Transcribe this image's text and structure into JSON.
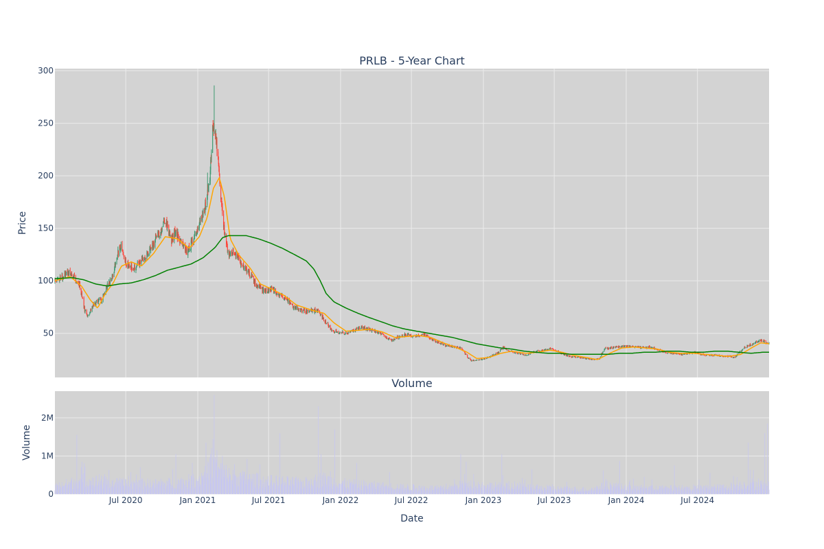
{
  "colors": {
    "background": "#ffffff",
    "plot_bg": "#d3d3d3",
    "grid": "#ebebeb",
    "text": "#2a3f5f",
    "candle_up": "#3d9970",
    "candle_down": "#ff4136",
    "ma_short": "#ffa500",
    "ma_long": "#008000",
    "volume_bar": "#c7c7f0"
  },
  "chart_data": [
    {
      "type": "candlestick",
      "title": "PRLB - 5-Year Chart",
      "xlabel": "",
      "ylabel": "Price",
      "x_range": [
        "2020-01-02",
        "2024-12-31"
      ],
      "ylim": [
        8,
        302
      ],
      "yticks": [
        50,
        100,
        150,
        200,
        250,
        300
      ],
      "ytick_labels": [
        "50",
        "100",
        "150",
        "200",
        "250",
        "300"
      ],
      "grid": true,
      "price_path": [
        [
          "2020-01-02",
          100
        ],
        [
          "2020-01-20",
          104
        ],
        [
          "2020-02-05",
          108
        ],
        [
          "2020-02-20",
          103
        ],
        [
          "2020-03-05",
          96
        ],
        [
          "2020-03-18",
          72
        ],
        [
          "2020-03-25",
          66
        ],
        [
          "2020-04-10",
          78
        ],
        [
          "2020-05-01",
          82
        ],
        [
          "2020-05-15",
          96
        ],
        [
          "2020-05-29",
          104
        ],
        [
          "2020-06-10",
          127
        ],
        [
          "2020-06-20",
          132
        ],
        [
          "2020-07-01",
          118
        ],
        [
          "2020-07-20",
          112
        ],
        [
          "2020-08-05",
          117
        ],
        [
          "2020-08-25",
          125
        ],
        [
          "2020-09-10",
          135
        ],
        [
          "2020-10-01",
          150
        ],
        [
          "2020-10-10",
          160
        ],
        [
          "2020-10-25",
          138
        ],
        [
          "2020-11-05",
          148
        ],
        [
          "2020-11-20",
          135
        ],
        [
          "2020-12-05",
          128
        ],
        [
          "2020-12-20",
          138
        ],
        [
          "2021-01-05",
          155
        ],
        [
          "2021-01-20",
          170
        ],
        [
          "2021-02-01",
          200
        ],
        [
          "2021-02-09",
          248
        ],
        [
          "2021-02-22",
          220
        ],
        [
          "2021-03-01",
          180
        ],
        [
          "2021-03-10",
          145
        ],
        [
          "2021-03-20",
          125
        ],
        [
          "2021-04-01",
          128
        ],
        [
          "2021-04-20",
          118
        ],
        [
          "2021-05-10",
          108
        ],
        [
          "2021-06-01",
          95
        ],
        [
          "2021-06-20",
          90
        ],
        [
          "2021-07-10",
          92
        ],
        [
          "2021-07-25",
          88
        ],
        [
          "2021-08-10",
          84
        ],
        [
          "2021-09-01",
          76
        ],
        [
          "2021-09-20",
          72
        ],
        [
          "2021-10-10",
          71
        ],
        [
          "2021-11-01",
          72
        ],
        [
          "2021-11-10",
          68
        ],
        [
          "2021-11-25",
          60
        ],
        [
          "2021-12-10",
          53
        ],
        [
          "2021-12-31",
          51
        ],
        [
          "2022-01-15",
          50
        ],
        [
          "2022-02-01",
          52
        ],
        [
          "2022-02-20",
          56
        ],
        [
          "2022-03-10",
          54
        ],
        [
          "2022-04-01",
          52
        ],
        [
          "2022-04-20",
          48
        ],
        [
          "2022-05-10",
          43
        ],
        [
          "2022-05-25",
          46
        ],
        [
          "2022-06-15",
          49
        ],
        [
          "2022-07-05",
          47
        ],
        [
          "2022-08-01",
          49
        ],
        [
          "2022-08-20",
          45
        ],
        [
          "2022-09-10",
          41
        ],
        [
          "2022-10-01",
          38
        ],
        [
          "2022-10-20",
          37
        ],
        [
          "2022-11-05",
          36
        ],
        [
          "2022-11-20",
          28
        ],
        [
          "2022-12-01",
          24
        ],
        [
          "2022-12-20",
          25
        ],
        [
          "2023-01-05",
          26
        ],
        [
          "2023-01-25",
          29
        ],
        [
          "2023-02-10",
          32
        ],
        [
          "2023-02-20",
          37
        ],
        [
          "2023-03-10",
          33
        ],
        [
          "2023-04-01",
          31
        ],
        [
          "2023-04-20",
          29
        ],
        [
          "2023-05-10",
          32
        ],
        [
          "2023-06-01",
          34
        ],
        [
          "2023-06-20",
          35
        ],
        [
          "2023-07-10",
          33
        ],
        [
          "2023-07-25",
          30
        ],
        [
          "2023-08-10",
          28
        ],
        [
          "2023-09-01",
          27
        ],
        [
          "2023-09-20",
          26
        ],
        [
          "2023-10-10",
          25
        ],
        [
          "2023-10-25",
          26
        ],
        [
          "2023-11-05",
          35
        ],
        [
          "2023-11-20",
          36
        ],
        [
          "2023-12-10",
          37
        ],
        [
          "2024-01-05",
          38
        ],
        [
          "2024-01-25",
          37
        ],
        [
          "2024-02-10",
          36
        ],
        [
          "2024-03-01",
          37
        ],
        [
          "2024-03-20",
          35
        ],
        [
          "2024-04-10",
          32
        ],
        [
          "2024-05-01",
          31
        ],
        [
          "2024-05-20",
          30
        ],
        [
          "2024-06-10",
          31
        ],
        [
          "2024-06-25",
          32
        ],
        [
          "2024-07-10",
          30
        ],
        [
          "2024-08-01",
          29
        ],
        [
          "2024-08-20",
          29
        ],
        [
          "2024-09-10",
          28
        ],
        [
          "2024-09-25",
          28
        ],
        [
          "2024-10-05",
          27
        ],
        [
          "2024-10-15",
          32
        ],
        [
          "2024-10-31",
          37
        ],
        [
          "2024-11-20",
          40
        ],
        [
          "2024-12-05",
          43
        ],
        [
          "2024-12-20",
          42
        ],
        [
          "2024-12-31",
          40
        ]
      ],
      "ma_short_path": [
        [
          "2020-01-02",
          100
        ],
        [
          "2020-02-10",
          104
        ],
        [
          "2020-03-10",
          95
        ],
        [
          "2020-04-01",
          82
        ],
        [
          "2020-04-20",
          74
        ],
        [
          "2020-05-10",
          88
        ],
        [
          "2020-05-30",
          98
        ],
        [
          "2020-06-20",
          114
        ],
        [
          "2020-07-15",
          118
        ],
        [
          "2020-08-10",
          114
        ],
        [
          "2020-09-10",
          126
        ],
        [
          "2020-10-10",
          142
        ],
        [
          "2020-11-10",
          140
        ],
        [
          "2020-12-10",
          131
        ],
        [
          "2021-01-05",
          142
        ],
        [
          "2021-01-25",
          160
        ],
        [
          "2021-02-10",
          188
        ],
        [
          "2021-02-25",
          198
        ],
        [
          "2021-03-10",
          180
        ],
        [
          "2021-03-25",
          140
        ],
        [
          "2021-04-15",
          125
        ],
        [
          "2021-05-15",
          112
        ],
        [
          "2021-06-10",
          97
        ],
        [
          "2021-07-10",
          92
        ],
        [
          "2021-08-10",
          86
        ],
        [
          "2021-09-10",
          77
        ],
        [
          "2021-10-20",
          72
        ],
        [
          "2021-11-20",
          69
        ],
        [
          "2021-12-15",
          60
        ],
        [
          "2022-01-15",
          52
        ],
        [
          "2022-02-20",
          53
        ],
        [
          "2022-03-20",
          54
        ],
        [
          "2022-04-20",
          51
        ],
        [
          "2022-05-20",
          46
        ],
        [
          "2022-06-20",
          47
        ],
        [
          "2022-07-20",
          48
        ],
        [
          "2022-08-20",
          46
        ],
        [
          "2022-09-20",
          41
        ],
        [
          "2022-10-20",
          37
        ],
        [
          "2022-11-20",
          32
        ],
        [
          "2022-12-15",
          26
        ],
        [
          "2023-01-15",
          27
        ],
        [
          "2023-02-15",
          31
        ],
        [
          "2023-03-15",
          33
        ],
        [
          "2023-04-20",
          31
        ],
        [
          "2023-05-20",
          32
        ],
        [
          "2023-06-20",
          34
        ],
        [
          "2023-07-20",
          32
        ],
        [
          "2023-08-20",
          29
        ],
        [
          "2023-09-20",
          27
        ],
        [
          "2023-10-20",
          25
        ],
        [
          "2023-11-20",
          31
        ],
        [
          "2023-12-20",
          36
        ],
        [
          "2024-01-20",
          37
        ],
        [
          "2024-02-20",
          36
        ],
        [
          "2024-03-20",
          35
        ],
        [
          "2024-04-20",
          32
        ],
        [
          "2024-05-20",
          31
        ],
        [
          "2024-06-20",
          31
        ],
        [
          "2024-07-20",
          30
        ],
        [
          "2024-08-20",
          29
        ],
        [
          "2024-09-20",
          28
        ],
        [
          "2024-10-20",
          30
        ],
        [
          "2024-11-20",
          37
        ],
        [
          "2024-12-10",
          41
        ],
        [
          "2024-12-31",
          40
        ]
      ],
      "ma_long_path": [
        [
          "2020-01-02",
          102
        ],
        [
          "2020-02-15",
          103
        ],
        [
          "2020-03-15",
          101
        ],
        [
          "2020-04-15",
          97
        ],
        [
          "2020-05-15",
          95
        ],
        [
          "2020-06-15",
          97
        ],
        [
          "2020-07-15",
          98
        ],
        [
          "2020-08-15",
          101
        ],
        [
          "2020-09-15",
          105
        ],
        [
          "2020-10-15",
          110
        ],
        [
          "2020-11-15",
          113
        ],
        [
          "2020-12-15",
          116
        ],
        [
          "2021-01-15",
          122
        ],
        [
          "2021-02-15",
          132
        ],
        [
          "2021-03-05",
          141
        ],
        [
          "2021-03-20",
          143
        ],
        [
          "2021-05-05",
          143
        ],
        [
          "2021-06-05",
          140
        ],
        [
          "2021-07-05",
          136
        ],
        [
          "2021-08-05",
          131
        ],
        [
          "2021-09-05",
          125
        ],
        [
          "2021-10-05",
          119
        ],
        [
          "2021-10-25",
          111
        ],
        [
          "2021-11-10",
          100
        ],
        [
          "2021-11-25",
          88
        ],
        [
          "2021-12-15",
          80
        ],
        [
          "2022-01-15",
          74
        ],
        [
          "2022-02-15",
          69
        ],
        [
          "2022-03-15",
          65
        ],
        [
          "2022-04-15",
          61
        ],
        [
          "2022-05-15",
          57
        ],
        [
          "2022-06-15",
          54
        ],
        [
          "2022-07-15",
          52
        ],
        [
          "2022-08-15",
          50
        ],
        [
          "2022-09-15",
          48
        ],
        [
          "2022-10-15",
          46
        ],
        [
          "2022-11-15",
          43
        ],
        [
          "2022-12-15",
          40
        ],
        [
          "2023-01-15",
          38
        ],
        [
          "2023-02-15",
          36
        ],
        [
          "2023-03-15",
          35
        ],
        [
          "2023-04-15",
          33
        ],
        [
          "2023-05-15",
          32
        ],
        [
          "2023-06-15",
          31
        ],
        [
          "2023-07-15",
          31
        ],
        [
          "2023-08-15",
          30
        ],
        [
          "2023-09-15",
          30
        ],
        [
          "2023-10-15",
          30
        ],
        [
          "2023-11-15",
          30
        ],
        [
          "2023-12-15",
          31
        ],
        [
          "2024-01-15",
          31
        ],
        [
          "2024-02-15",
          32
        ],
        [
          "2024-03-15",
          32
        ],
        [
          "2024-04-15",
          33
        ],
        [
          "2024-05-15",
          33
        ],
        [
          "2024-06-15",
          32
        ],
        [
          "2024-07-15",
          32
        ],
        [
          "2024-08-15",
          33
        ],
        [
          "2024-09-15",
          33
        ],
        [
          "2024-10-15",
          32
        ],
        [
          "2024-11-15",
          31
        ],
        [
          "2024-12-15",
          32
        ],
        [
          "2024-12-31",
          32
        ]
      ]
    },
    {
      "type": "bar",
      "title": "Volume",
      "xlabel": "Date",
      "ylabel": "Volume",
      "x_range": [
        "2020-01-02",
        "2024-12-31"
      ],
      "ylim": [
        0,
        2700000
      ],
      "yticks": [
        0,
        1000000,
        2000000
      ],
      "ytick_labels": [
        "0",
        "1M",
        "2M"
      ],
      "xticks": [
        "2020-07-01",
        "2021-01-01",
        "2021-07-01",
        "2022-01-01",
        "2022-07-01",
        "2023-01-01",
        "2023-07-01",
        "2024-01-01",
        "2024-07-01"
      ],
      "xtick_labels": [
        "Jul 2020",
        "Jan 2021",
        "Jul 2021",
        "Jan 2022",
        "Jul 2022",
        "Jan 2023",
        "Jul 2023",
        "Jan 2024",
        "Jul 2024"
      ],
      "grid": true,
      "base_volume": [
        [
          "2020-01-02",
          220000
        ],
        [
          "2020-03-15",
          420000
        ],
        [
          "2020-06-01",
          320000
        ],
        [
          "2020-10-01",
          300000
        ],
        [
          "2021-01-01",
          420000
        ],
        [
          "2021-02-10",
          800000
        ],
        [
          "2021-04-01",
          500000
        ],
        [
          "2021-07-01",
          380000
        ],
        [
          "2021-10-01",
          330000
        ],
        [
          "2021-11-15",
          450000
        ],
        [
          "2022-01-01",
          320000
        ],
        [
          "2022-06-01",
          210000
        ],
        [
          "2022-10-01",
          170000
        ],
        [
          "2022-11-15",
          300000
        ],
        [
          "2023-01-01",
          260000
        ],
        [
          "2023-06-01",
          180000
        ],
        [
          "2023-10-01",
          140000
        ],
        [
          "2023-11-15",
          270000
        ],
        [
          "2024-01-01",
          190000
        ],
        [
          "2024-06-01",
          170000
        ],
        [
          "2024-09-01",
          200000
        ],
        [
          "2024-11-15",
          320000
        ],
        [
          "2024-12-31",
          250000
        ]
      ],
      "spikes": [
        [
          "2020-02-27",
          1550000
        ],
        [
          "2020-05-08",
          520000
        ],
        [
          "2020-08-07",
          700000
        ],
        [
          "2020-11-06",
          1050000
        ],
        [
          "2020-12-18",
          820000
        ],
        [
          "2021-01-22",
          1350000
        ],
        [
          "2021-02-05",
          1200000
        ],
        [
          "2021-02-12",
          2600000
        ],
        [
          "2021-02-19",
          1150000
        ],
        [
          "2021-03-05",
          1000000
        ],
        [
          "2021-05-07",
          920000
        ],
        [
          "2021-07-30",
          1600000
        ],
        [
          "2021-11-05",
          2300000
        ],
        [
          "2021-11-12",
          1050000
        ],
        [
          "2021-12-17",
          1700000
        ],
        [
          "2022-02-11",
          820000
        ],
        [
          "2022-05-06",
          580000
        ],
        [
          "2022-11-04",
          1050000
        ],
        [
          "2022-11-18",
          850000
        ],
        [
          "2023-02-17",
          1050000
        ],
        [
          "2023-05-05",
          650000
        ],
        [
          "2023-11-03",
          620000
        ],
        [
          "2023-12-15",
          870000
        ],
        [
          "2024-02-16",
          450000
        ],
        [
          "2024-05-03",
          750000
        ],
        [
          "2024-08-02",
          560000
        ],
        [
          "2024-11-08",
          1350000
        ],
        [
          "2024-12-20",
          1600000
        ],
        [
          "2024-12-27",
          1850000
        ]
      ]
    }
  ],
  "legend": "none"
}
